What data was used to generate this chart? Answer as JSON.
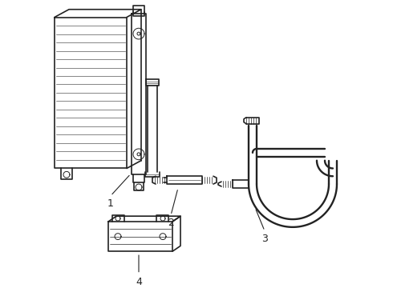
{
  "background_color": "#ffffff",
  "line_color": "#222222",
  "lw": 1.2,
  "tlw": 0.7
}
